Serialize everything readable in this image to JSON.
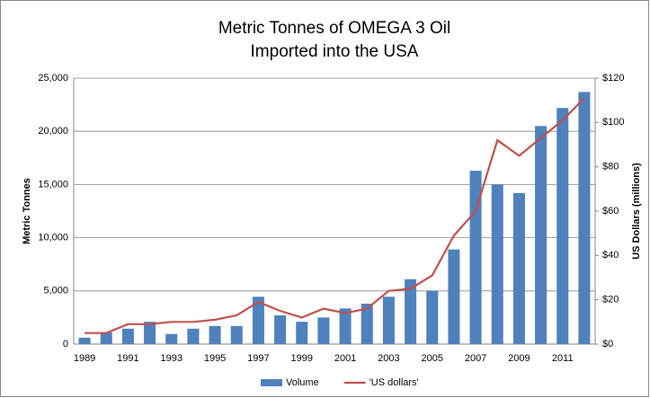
{
  "chart_data": {
    "type": "bar-line",
    "title": [
      "Metric Tonnes of OMEGA 3 Oil",
      "Imported into the USA"
    ],
    "y_label": "Metric Tonnes",
    "y2_label": "US Dollars (millions)",
    "categories": [
      "1989",
      null,
      "1991",
      null,
      "1993",
      null,
      "1995",
      null,
      "1997",
      null,
      "1999",
      null,
      "2001",
      null,
      "2003",
      null,
      "2005",
      null,
      "2007",
      null,
      "2009",
      null,
      "2011",
      null
    ],
    "series": [
      {
        "name": "Volume",
        "type": "bar",
        "color": "#4f81bd",
        "axis": "y",
        "values": [
          600,
          1100,
          1450,
          2100,
          950,
          1450,
          1700,
          1700,
          4450,
          2700,
          2100,
          2500,
          3350,
          3800,
          4450,
          6100,
          5000,
          8900,
          16300,
          15000,
          14200,
          20500,
          22200,
          23700
        ]
      },
      {
        "name": "'US dollars'",
        "type": "line",
        "color": "#c0504d",
        "axis": "y2",
        "values": [
          5,
          5,
          9,
          9,
          10,
          10,
          11,
          13,
          19,
          15,
          12,
          16,
          14,
          16,
          24,
          25,
          31,
          49,
          60,
          92,
          85,
          93,
          101,
          111
        ]
      }
    ],
    "ylim": [
      0,
      25000
    ],
    "yticks": [
      0,
      {
        "value": 5000,
        "label": "5,000"
      },
      {
        "value": 10000,
        "label": "10,000"
      },
      {
        "value": 15000,
        "label": "15,000"
      },
      {
        "value": 20000,
        "label": "20,000"
      },
      {
        "value": 25000,
        "label": "25,000"
      }
    ],
    "y2lim": [
      0,
      120
    ],
    "y2ticks": [
      {
        "value": 0,
        "label": "$0"
      },
      {
        "value": 20,
        "label": "$20"
      },
      {
        "value": 40,
        "label": "$40"
      },
      {
        "value": 60,
        "label": "$60"
      },
      {
        "value": 80,
        "label": "$80"
      },
      {
        "value": 100,
        "label": "$100"
      },
      {
        "value": 120,
        "label": "$120"
      }
    ],
    "grid": true,
    "legend": "bottom"
  }
}
